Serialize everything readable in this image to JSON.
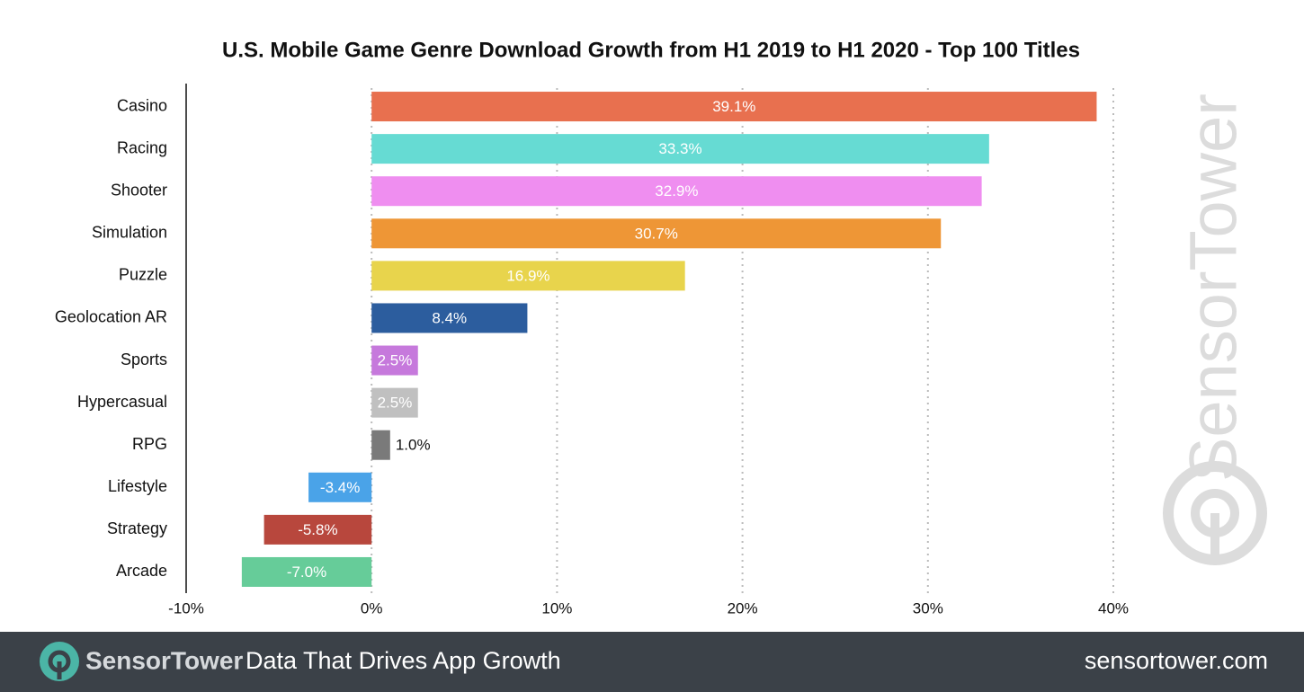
{
  "chart_data": {
    "type": "bar",
    "orientation": "horizontal",
    "title": "U.S. Mobile Game Genre Download Growth from H1 2019 to H1 2020 - Top 100 Titles",
    "categories": [
      "Casino",
      "Racing",
      "Shooter",
      "Simulation",
      "Puzzle",
      "Geolocation AR",
      "Sports",
      "Hypercasual",
      "RPG",
      "Lifestyle",
      "Strategy",
      "Arcade"
    ],
    "values": [
      39.1,
      33.3,
      32.9,
      30.7,
      16.9,
      8.4,
      2.5,
      2.5,
      1.0,
      -3.4,
      -5.8,
      -7.0
    ],
    "value_labels": [
      "39.1%",
      "33.3%",
      "32.9%",
      "30.7%",
      "16.9%",
      "8.4%",
      "2.5%",
      "2.5%",
      "1.0%",
      "-3.4%",
      "-5.8%",
      "-7.0%"
    ],
    "colors": [
      "#e8704f",
      "#66dbd3",
      "#ef8ef0",
      "#ee9636",
      "#e8d44c",
      "#2c5d9e",
      "#c679dc",
      "#c0c0c0",
      "#7a7a7a",
      "#4aa3e8",
      "#b8473d",
      "#66cc99"
    ],
    "xlim": [
      -10,
      40
    ],
    "xticks": [
      {
        "value": -10,
        "label": "-10%"
      },
      {
        "value": 0,
        "label": "0%"
      },
      {
        "value": 10,
        "label": "10%"
      },
      {
        "value": 20,
        "label": "20%"
      },
      {
        "value": 30,
        "label": "30%"
      },
      {
        "value": 40,
        "label": "40%"
      }
    ],
    "grid": true
  },
  "watermark": "SensorTower",
  "footer": {
    "brand": "SensorTower",
    "tagline": "Data That Drives App Growth",
    "url": "sensortower.com"
  }
}
